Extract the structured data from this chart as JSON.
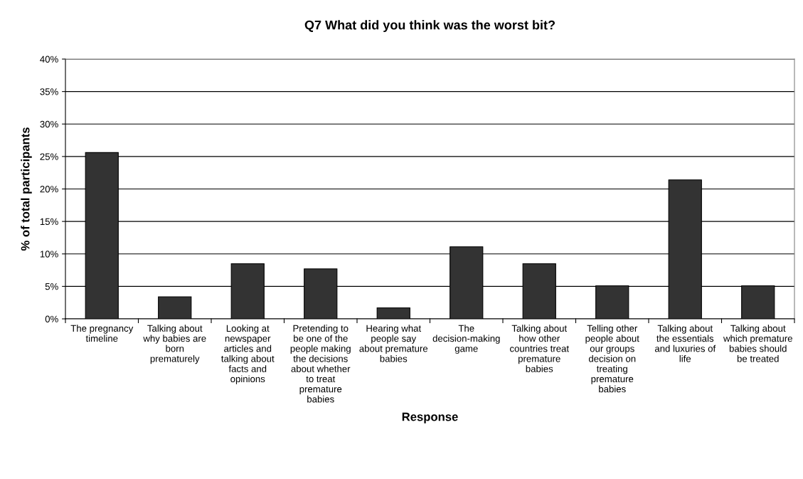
{
  "chart_data": {
    "type": "bar",
    "title": "Q7 What did you think was the worst bit?",
    "xlabel": "Response",
    "ylabel": "% of total participants",
    "categories": [
      "The pregnancy timeline",
      "Talking about why babies are born prematurely",
      "Looking at newspaper articles and talking about facts and opinions",
      "Pretending to be one of the people making the decisions about whether to treat premature babies",
      "Hearing what people say about premature babies",
      "The decision-making game",
      "Talking about how other countries treat premature babies",
      "Telling other people about our groups decision on treating premature babies",
      "Talking about the essentials and luxuries of life",
      "Talking about which premature babies should be treated"
    ],
    "values": [
      25.6,
      3.4,
      8.5,
      7.7,
      1.7,
      11.1,
      8.5,
      5.1,
      21.4,
      5.1
    ],
    "color": "#333333",
    "ylim": [
      0,
      40
    ],
    "yticks": [
      {
        "value": 0,
        "label": "0%"
      },
      {
        "value": 5,
        "label": "5%"
      },
      {
        "value": 10,
        "label": "10%"
      },
      {
        "value": 15,
        "label": "15%"
      },
      {
        "value": 20,
        "label": "20%"
      },
      {
        "value": 25,
        "label": "25%"
      },
      {
        "value": 30,
        "label": "30%"
      },
      {
        "value": 35,
        "label": "35%"
      },
      {
        "value": 40,
        "label": "40%"
      }
    ],
    "grid": "y"
  }
}
